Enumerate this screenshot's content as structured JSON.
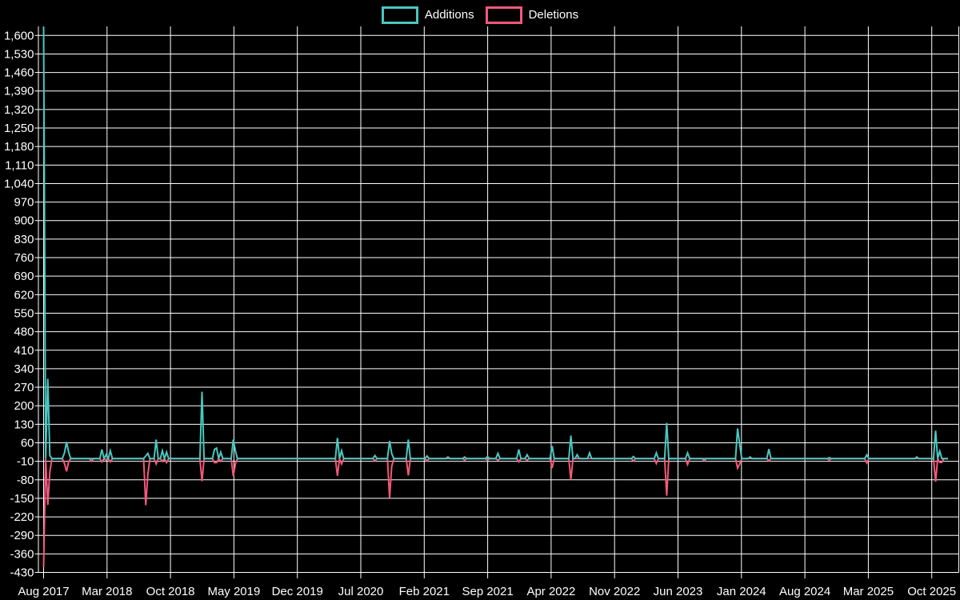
{
  "chart_data": {
    "type": "line",
    "title": "",
    "background": "#000000",
    "grid": true,
    "legend_position": "top-center",
    "text_color": "#ffffff",
    "grid_color": "#ffffff",
    "y_axis": {
      "min": -430,
      "max": 1600,
      "step": 70,
      "tick_labels": [
        "-430",
        "-360",
        "-290",
        "-220",
        "-150",
        "-80",
        "-10",
        "60",
        "130",
        "200",
        "270",
        "340",
        "410",
        "480",
        "550",
        "620",
        "690",
        "760",
        "830",
        "900",
        "970",
        "1,040",
        "1,110",
        "1,180",
        "1,250",
        "1,320",
        "1,390",
        "1,460",
        "1,530",
        "1,600"
      ]
    },
    "x_axis": {
      "tick_labels": [
        "Aug 2017",
        "Mar 2018",
        "Oct 2018",
        "May 2019",
        "Dec 2019",
        "Jul 2020",
        "Feb 2021",
        "Sep 2021",
        "Apr 2022",
        "Nov 2022",
        "Jun 2023",
        "Jan 2024",
        "Aug 2024",
        "Mar 2025",
        "Oct 2025"
      ],
      "months_per_tick": 7
    },
    "series": [
      {
        "name": "Additions",
        "color": "#48c8c1"
      },
      {
        "name": "Deletions",
        "color": "#f4587a"
      }
    ],
    "weeks_total": 435,
    "baseline_value": 0,
    "spikes_by_week": {
      "0": [
        1634,
        -409
      ],
      "2": [
        302,
        -175
      ],
      "3": [
        12,
        -50
      ],
      "10": [
        22,
        -18
      ],
      "11": [
        63,
        -48
      ],
      "12": [
        25,
        -12
      ],
      "23": [
        0,
        -10
      ],
      "28": [
        35,
        -12
      ],
      "30": [
        15,
        -5
      ],
      "32": [
        30,
        -12
      ],
      "49": [
        10,
        -176
      ],
      "50": [
        20,
        -60
      ],
      "54": [
        72,
        -20
      ],
      "57": [
        30,
        -10
      ],
      "59": [
        25,
        -15
      ],
      "76": [
        253,
        -85
      ],
      "82": [
        35,
        -15
      ],
      "83": [
        40,
        -15
      ],
      "85": [
        25,
        -10
      ],
      "91": [
        72,
        -66
      ],
      "92": [
        30,
        -20
      ],
      "141": [
        78,
        -65
      ],
      "143": [
        30,
        -20
      ],
      "159": [
        12,
        -8
      ],
      "166": [
        67,
        -148
      ],
      "167": [
        20,
        -30
      ],
      "175": [
        72,
        -63
      ],
      "184": [
        10,
        -8
      ],
      "194": [
        6,
        0
      ],
      "202": [
        6,
        -5
      ],
      "213": [
        8,
        -6
      ],
      "218": [
        20,
        -6
      ],
      "228": [
        35,
        -12
      ],
      "232": [
        15,
        -6
      ],
      "244": [
        48,
        -35
      ],
      "253": [
        87,
        -80
      ],
      "256": [
        15,
        0
      ],
      "262": [
        22,
        0
      ],
      "283": [
        8,
        -8
      ],
      "294": [
        22,
        -18
      ],
      "299": [
        135,
        -140
      ],
      "309": [
        22,
        -22
      ],
      "317": [
        0,
        -8
      ],
      "333": [
        114,
        -36
      ],
      "334": [
        55,
        -20
      ],
      "339": [
        6,
        0
      ],
      "348": [
        36,
        -8
      ],
      "377": [
        4,
        -5
      ],
      "395": [
        14,
        -16
      ],
      "419": [
        6,
        0
      ],
      "428": [
        106,
        -87
      ],
      "430": [
        28,
        -14
      ],
      "431": [
        0,
        -14
      ]
    }
  },
  "legend": {
    "items": [
      {
        "label": "Additions"
      },
      {
        "label": "Deletions"
      }
    ]
  }
}
